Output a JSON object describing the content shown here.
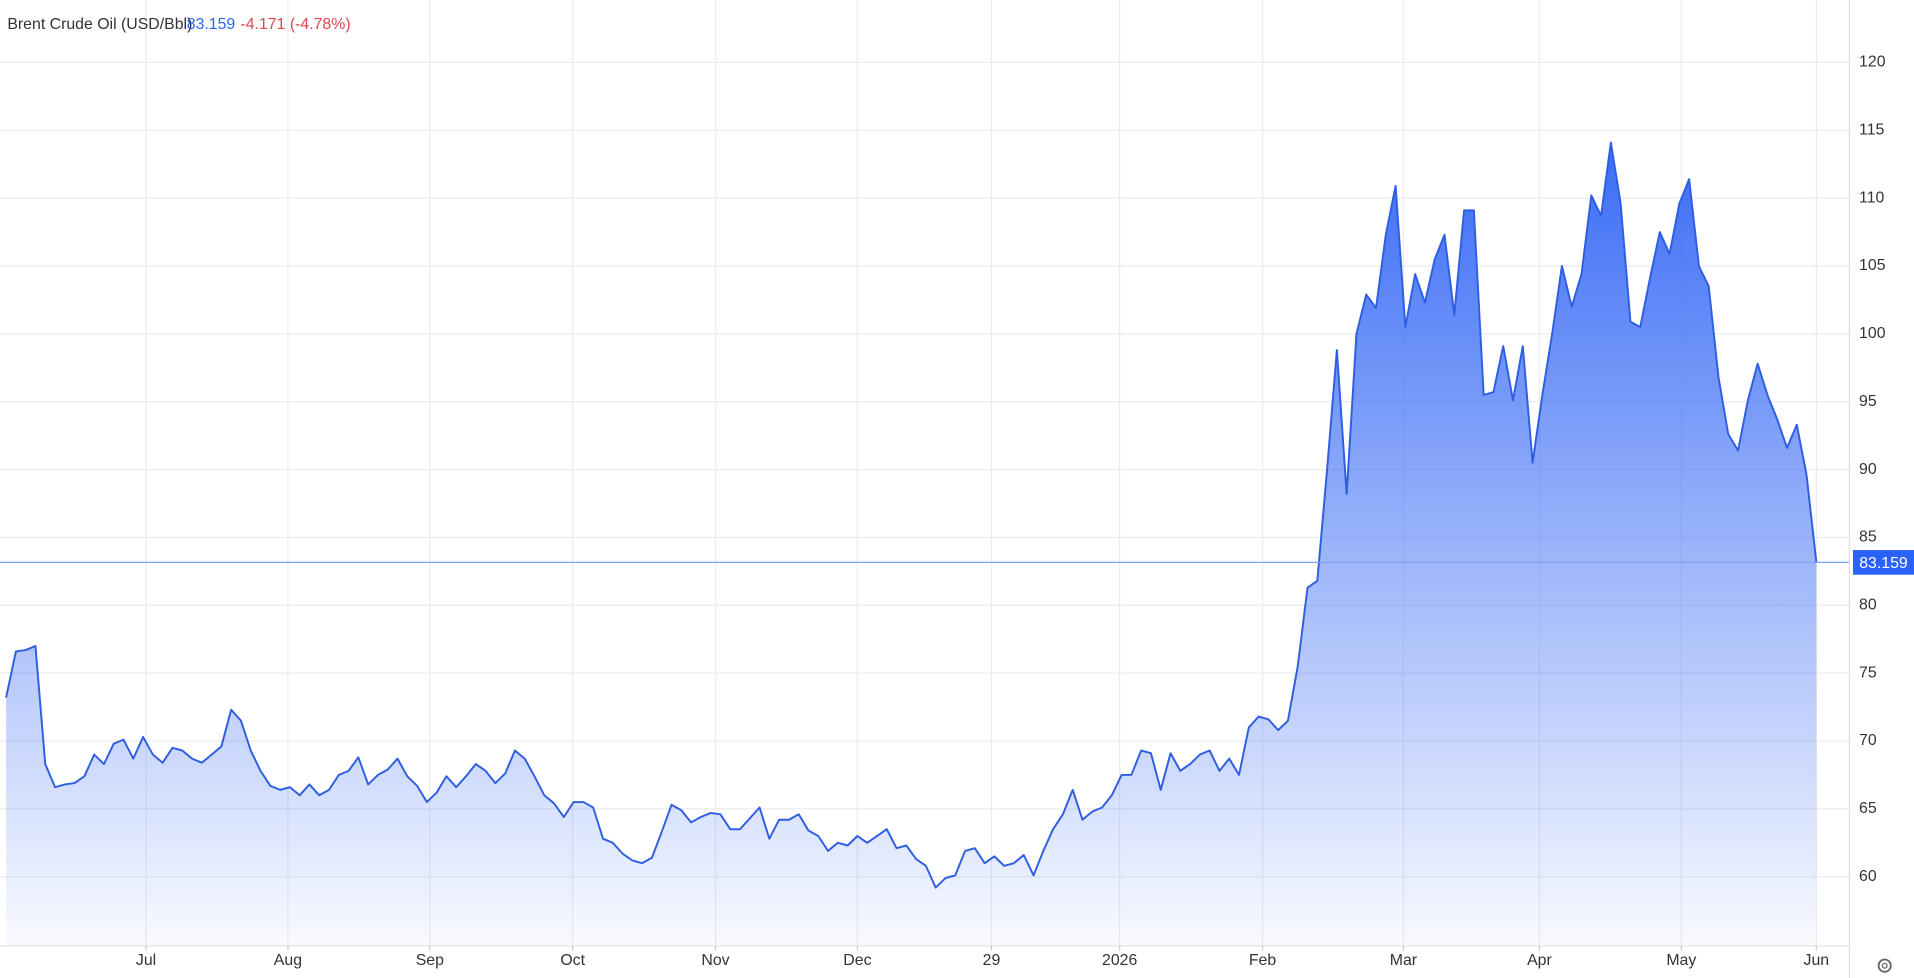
{
  "chart_data": {
    "type": "area",
    "title": "Brent Crude Oil (USD/Bbl)",
    "change_label": "-4.171 (-4.78%)",
    "color": "#2f5fe0",
    "values": [
      73.2,
      76.6,
      76.7,
      77.0,
      68.3,
      66.6,
      66.8,
      66.9,
      67.4,
      69.0,
      68.3,
      69.8,
      70.1,
      68.7,
      70.3,
      69.0,
      68.4,
      69.5,
      69.3,
      68.7,
      68.4,
      69.0,
      69.6,
      72.3,
      71.5,
      69.3,
      67.8,
      66.7,
      66.4,
      66.6,
      66.0,
      66.8,
      66.0,
      66.4,
      67.5,
      67.8,
      68.8,
      66.8,
      67.5,
      67.9,
      68.7,
      67.4,
      66.7,
      65.5,
      66.2,
      67.4,
      66.6,
      67.4,
      68.3,
      67.8,
      66.9,
      67.6,
      69.3,
      68.7,
      67.4,
      66.0,
      65.4,
      64.4,
      65.5,
      65.5,
      65.1,
      62.8,
      62.5,
      61.7,
      61.2,
      61.0,
      61.4,
      63.3,
      65.3,
      64.9,
      64.0,
      64.4,
      64.7,
      64.6,
      63.5,
      63.5,
      64.3,
      65.1,
      62.8,
      64.2,
      64.2,
      64.6,
      63.4,
      63.0,
      61.9,
      62.5,
      62.3,
      63.0,
      62.5,
      63.0,
      63.5,
      62.1,
      62.3,
      61.3,
      60.8,
      59.2,
      59.9,
      60.1,
      61.9,
      62.1,
      61.0,
      61.5,
      60.8,
      61.0,
      61.6,
      60.1,
      61.9,
      63.5,
      64.6,
      66.4,
      64.2,
      64.8,
      65.1,
      66.0,
      67.5,
      67.5,
      69.3,
      69.1,
      66.4,
      69.1,
      67.8,
      68.3,
      69.0,
      69.3,
      67.8,
      68.7,
      67.5,
      71.0,
      71.8,
      71.6,
      70.8,
      71.5,
      75.5,
      81.3,
      81.8,
      90.0,
      98.8,
      88.2,
      100.0,
      102.9,
      101.9,
      107.3,
      110.9,
      100.5,
      104.4,
      102.3,
      105.5,
      107.3,
      101.4,
      109.1,
      109.1,
      95.5,
      95.7,
      99.1,
      95.1,
      99.1,
      90.5,
      95.5,
      100.0,
      105.0,
      102.0,
      104.4,
      110.2,
      108.7,
      114.1,
      109.6,
      100.9,
      100.5,
      104.1,
      107.5,
      105.9,
      109.6,
      111.4,
      105.0,
      103.5,
      96.8,
      92.6,
      91.4,
      95.1,
      97.8,
      95.5,
      93.7,
      91.6,
      93.3,
      89.6,
      83.159
    ],
    "xlim": [
      0,
      185
    ],
    "xticks": [
      {
        "value": 14.3,
        "label": "Jul"
      },
      {
        "value": 28.8,
        "label": "Aug"
      },
      {
        "value": 43.3,
        "label": "Sep"
      },
      {
        "value": 57.9,
        "label": "Oct"
      },
      {
        "value": 72.5,
        "label": "Nov"
      },
      {
        "value": 87.0,
        "label": "Dec"
      },
      {
        "value": 100.7,
        "label": "29"
      },
      {
        "value": 113.8,
        "label": "2026"
      },
      {
        "value": 128.4,
        "label": "Feb"
      },
      {
        "value": 142.8,
        "label": "Mar"
      },
      {
        "value": 156.7,
        "label": "Apr"
      },
      {
        "value": 171.2,
        "label": "May"
      },
      {
        "value": 185,
        "label": "Jun"
      }
    ],
    "ylim": [
      54.9,
      124.6
    ],
    "yticks": [
      60,
      65,
      70,
      75,
      80,
      85,
      90,
      95,
      100,
      105,
      110,
      115,
      120
    ],
    "grid": true
  }
}
